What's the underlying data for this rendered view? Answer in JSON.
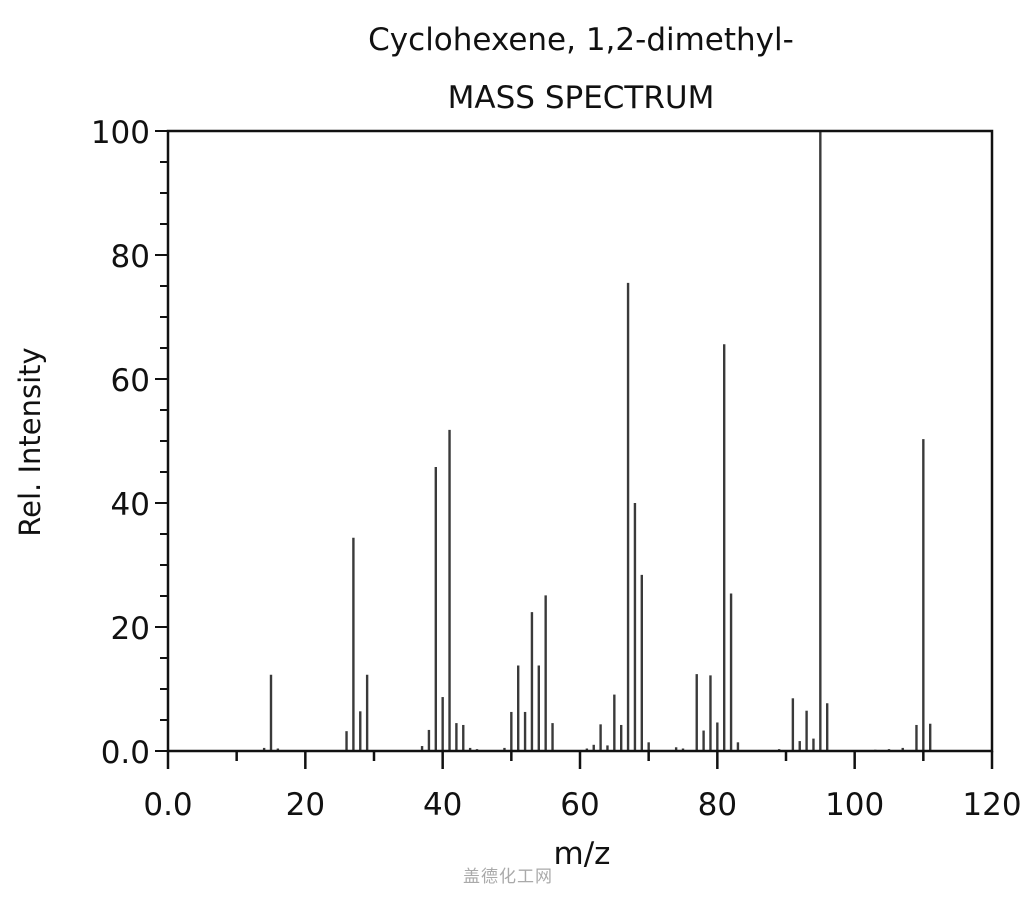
{
  "chart_data": {
    "type": "bar",
    "subtype": "mass-spectrum-stick",
    "title": "Cyclohexene, 1,2-dimethyl-",
    "subtitle": "MASS SPECTRUM",
    "xlabel": "m/z",
    "ylabel": "Rel. Intensity",
    "xlim": [
      0,
      120
    ],
    "ylim": [
      0,
      100
    ],
    "xticks": [
      0,
      20,
      40,
      60,
      80,
      100,
      120
    ],
    "xtick_labels": [
      "0.0",
      "20",
      "40",
      "60",
      "80",
      "100",
      "120"
    ],
    "x_minor_step": 10,
    "yticks": [
      0,
      20,
      40,
      60,
      80,
      100
    ],
    "ytick_labels": [
      "0.0",
      "20",
      "40",
      "60",
      "80",
      "100"
    ],
    "y_minor_step": 5,
    "grid": false,
    "legend": null,
    "x": [
      14,
      15,
      16,
      26,
      27,
      28,
      29,
      37,
      38,
      39,
      40,
      41,
      42,
      43,
      44,
      45,
      49,
      50,
      51,
      52,
      53,
      54,
      55,
      56,
      61,
      62,
      63,
      64,
      65,
      66,
      67,
      68,
      69,
      70,
      74,
      75,
      77,
      78,
      79,
      80,
      81,
      82,
      83,
      89,
      91,
      92,
      93,
      94,
      95,
      96,
      103,
      105,
      107,
      109,
      110,
      111
    ],
    "values": [
      0.5,
      12.3,
      0.4,
      3.2,
      34.4,
      6.4,
      12.3,
      0.8,
      3.4,
      45.8,
      8.7,
      51.8,
      4.5,
      4.2,
      0.5,
      0.3,
      0.5,
      6.3,
      13.8,
      6.3,
      22.4,
      13.8,
      25.1,
      4.5,
      0.4,
      1.0,
      4.3,
      0.9,
      9.1,
      4.2,
      75.5,
      40.0,
      28.4,
      1.4,
      0.6,
      0.4,
      12.4,
      3.3,
      12.2,
      4.6,
      65.6,
      25.4,
      1.4,
      0.3,
      8.5,
      1.6,
      6.5,
      2.0,
      100,
      7.7,
      0.2,
      0.3,
      0.5,
      4.2,
      50.3,
      4.4
    ]
  },
  "watermark": "盖德化工网",
  "colors": {
    "axis": "#111111",
    "peak": "#3a3a3a",
    "background": "#ffffff",
    "watermark": "#aaaaaa"
  }
}
